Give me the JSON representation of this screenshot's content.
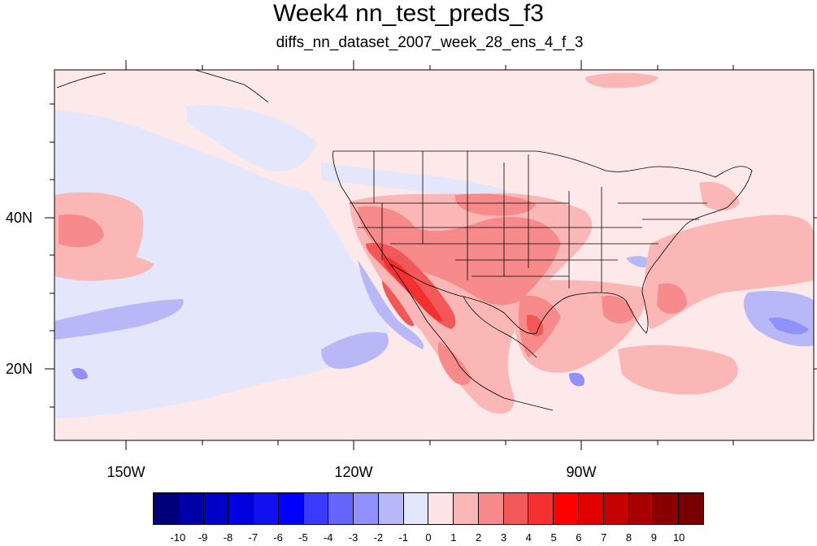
{
  "title": "Week4 nn_test_preds_f3",
  "subtitle": "diffs_nn_dataset_2007_week_28_ens_4_f_3",
  "axes": {
    "lat_labels": [
      "40N",
      "20N"
    ],
    "lon_labels": [
      "150W",
      "120W",
      "90W"
    ]
  },
  "colorbar": {
    "labels": [
      "-10",
      "-9",
      "-8",
      "-7",
      "-6",
      "-5",
      "-4",
      "-3",
      "-2",
      "-1",
      "0",
      "1",
      "2",
      "3",
      "4",
      "5",
      "6",
      "7",
      "8",
      "9",
      "10"
    ],
    "colors": [
      "#00007a",
      "#0000a8",
      "#0000c8",
      "#0000e0",
      "#1010f0",
      "#0000ff",
      "#3b3bff",
      "#6666ff",
      "#9090ff",
      "#b8b8f8",
      "#e4e6fb",
      "#fde5e5",
      "#fbb6b6",
      "#f78a8a",
      "#f25858",
      "#f43030",
      "#ff0000",
      "#e00000",
      "#c40000",
      "#a80000",
      "#8a0000",
      "#780000"
    ]
  },
  "map": {
    "lon_range": [
      -160,
      -61
    ],
    "lat_range": [
      11,
      59
    ],
    "colors": {
      "background": "#fde9e9",
      "light_blue": "#e4e6fb",
      "mid_blue": "#b8b8f8",
      "blue": "#9090ff",
      "dark_blue": "#6666ff",
      "light_red": "#fbb6b6",
      "red": "#f78a8a",
      "dark_red": "#f25858",
      "deep_red": "#f43030"
    }
  }
}
